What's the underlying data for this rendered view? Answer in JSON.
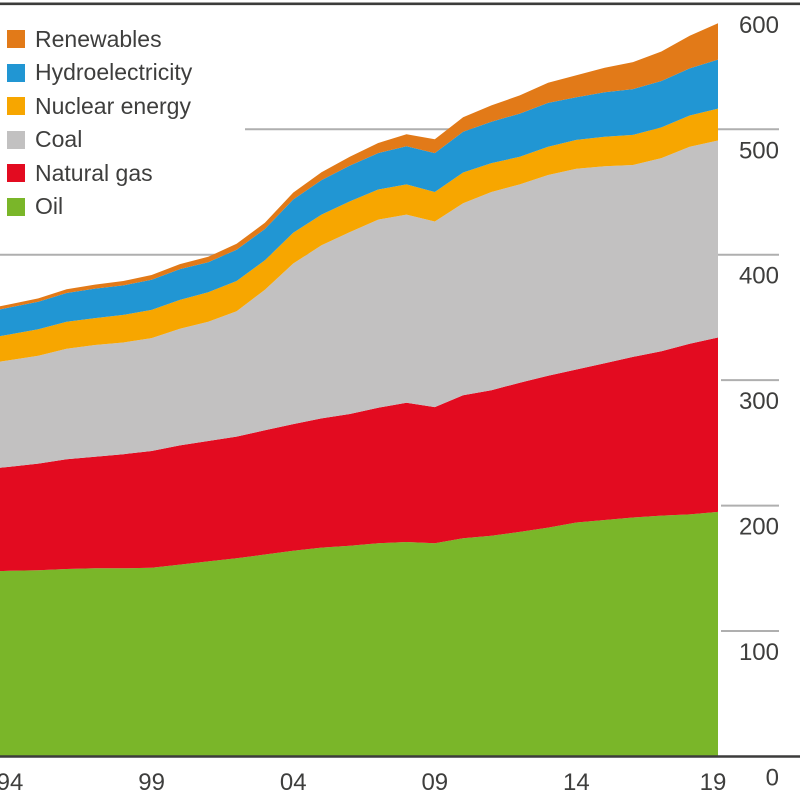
{
  "chart_data": {
    "type": "area",
    "stacked": true,
    "title": "",
    "xlabel": "",
    "ylabel": "",
    "ylim": [
      0,
      600
    ],
    "grid": "partial horizontal gridlines at 400 and 500, dark border lines at 0 and 600, short right-margin ticks at 100-500",
    "legend_position": "top-left",
    "x": [
      1994,
      1995,
      1996,
      1997,
      1998,
      1999,
      2000,
      2001,
      2002,
      2003,
      2004,
      2005,
      2006,
      2007,
      2008,
      2009,
      2010,
      2011,
      2012,
      2013,
      2014,
      2015,
      2016,
      2017,
      2018,
      2019
    ],
    "series": [
      {
        "name": "Oil",
        "color": "#7AB629",
        "values": [
          148,
          148.5,
          149.5,
          150,
          150,
          150.5,
          153,
          155.5,
          158,
          161,
          164,
          166.5,
          168,
          170,
          171,
          170,
          174,
          176,
          179,
          182.5,
          186.5,
          188.5,
          190.5,
          192,
          193,
          195
        ]
      },
      {
        "name": "Natural gas",
        "color": "#E30B20",
        "values": [
          83,
          85,
          87.5,
          89,
          91,
          93,
          95,
          96,
          97,
          99,
          101,
          103,
          105,
          108,
          111,
          108.5,
          114,
          116,
          119,
          121,
          122,
          125,
          128,
          131,
          136,
          139
        ]
      },
      {
        "name": "Coal",
        "color": "#C2C1C1",
        "values": [
          85,
          86,
          88,
          89,
          89,
          90,
          93,
          95,
          100,
          112,
          128,
          138,
          145,
          150,
          150,
          148,
          153,
          158,
          158,
          160,
          160,
          157,
          153,
          154,
          157,
          157
        ]
      },
      {
        "name": "Nuclear energy",
        "color": "#F7A600",
        "values": [
          20.5,
          21,
          21.5,
          21.5,
          22,
          22.5,
          23,
          23.5,
          24,
          23.5,
          24.5,
          24.5,
          24.5,
          24,
          24,
          23.5,
          24.5,
          23,
          22,
          22.5,
          23,
          23.5,
          24,
          24.5,
          25,
          25.5
        ]
      },
      {
        "name": "Hydroelectricity",
        "color": "#2196D3",
        "values": [
          21.5,
          22,
          23,
          23.5,
          23.5,
          24,
          24.5,
          24,
          25,
          25,
          26.5,
          27.5,
          28.5,
          29,
          30.5,
          31,
          32.5,
          33,
          34.5,
          35,
          34,
          35.5,
          36.5,
          37,
          37.5,
          39
        ]
      },
      {
        "name": "Renewables",
        "color": "#E27A18",
        "values": [
          2.5,
          2.7,
          3,
          3.2,
          3.5,
          3.8,
          4,
          4.3,
          4.7,
          5,
          5.5,
          6.2,
          7,
          8,
          9.5,
          11,
          11.5,
          13,
          14.5,
          16,
          17.5,
          19.5,
          21.5,
          23.5,
          26,
          29
        ]
      }
    ],
    "legend": [
      "Renewables",
      "Hydroelectricity",
      "Nuclear energy",
      "Coal",
      "Natural gas",
      "Oil"
    ],
    "y_ticks": [
      600,
      500,
      400,
      300,
      200,
      100
    ],
    "y_zero_label": "0",
    "x_ticks": [
      {
        "year": 1994,
        "label": "94"
      },
      {
        "year": 1999,
        "label": "99"
      },
      {
        "year": 2004,
        "label": "04"
      },
      {
        "year": 2009,
        "label": "09"
      },
      {
        "year": 2014,
        "label": "14"
      },
      {
        "year": 2019,
        "label": "19"
      }
    ]
  },
  "colors": {
    "background": "#FFFFFF",
    "axis_dark": "#3C3C3B",
    "grid_light": "#AFAFAF",
    "text": "#3E3E3D"
  }
}
